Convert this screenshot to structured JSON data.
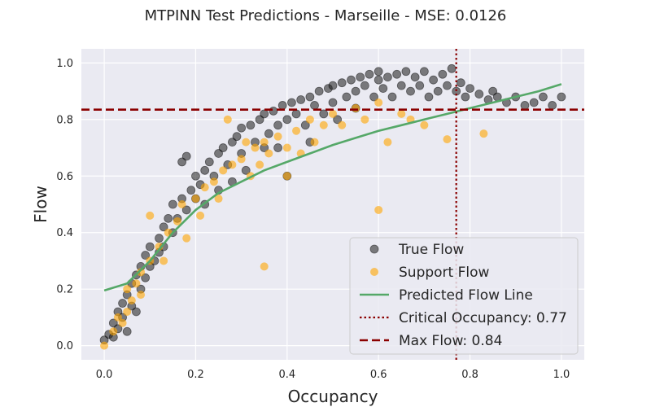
{
  "chart_data": {
    "type": "scatter",
    "title": "MTPINN Test Predictions - Marseille - MSE: 0.0126",
    "xlabel": "Occupancy",
    "ylabel": "Flow",
    "xlim": [
      -0.05,
      1.05
    ],
    "ylim": [
      -0.05,
      1.05
    ],
    "xticks": [
      "0.0",
      "0.2",
      "0.4",
      "0.6",
      "0.8",
      "1.0"
    ],
    "yticks": [
      "0.0",
      "0.2",
      "0.4",
      "0.6",
      "0.8",
      "1.0"
    ],
    "grid": true,
    "legend_position": "lower-right",
    "series": [
      {
        "name": "True Flow",
        "kind": "scatter",
        "color": "#1a1a1a",
        "note": "dense point cloud following a concave fundamental-diagram shape",
        "points": [
          [
            0.0,
            0.02
          ],
          [
            0.01,
            0.04
          ],
          [
            0.02,
            0.03
          ],
          [
            0.02,
            0.08
          ],
          [
            0.03,
            0.06
          ],
          [
            0.03,
            0.12
          ],
          [
            0.04,
            0.1
          ],
          [
            0.04,
            0.15
          ],
          [
            0.05,
            0.05
          ],
          [
            0.05,
            0.18
          ],
          [
            0.06,
            0.14
          ],
          [
            0.06,
            0.22
          ],
          [
            0.07,
            0.12
          ],
          [
            0.07,
            0.25
          ],
          [
            0.08,
            0.2
          ],
          [
            0.08,
            0.28
          ],
          [
            0.09,
            0.24
          ],
          [
            0.09,
            0.32
          ],
          [
            0.1,
            0.28
          ],
          [
            0.1,
            0.35
          ],
          [
            0.11,
            0.3
          ],
          [
            0.12,
            0.38
          ],
          [
            0.12,
            0.33
          ],
          [
            0.13,
            0.42
          ],
          [
            0.13,
            0.35
          ],
          [
            0.14,
            0.45
          ],
          [
            0.15,
            0.4
          ],
          [
            0.15,
            0.5
          ],
          [
            0.16,
            0.45
          ],
          [
            0.17,
            0.52
          ],
          [
            0.17,
            0.65
          ],
          [
            0.18,
            0.48
          ],
          [
            0.18,
            0.67
          ],
          [
            0.19,
            0.55
          ],
          [
            0.2,
            0.52
          ],
          [
            0.2,
            0.6
          ],
          [
            0.21,
            0.57
          ],
          [
            0.22,
            0.62
          ],
          [
            0.22,
            0.5
          ],
          [
            0.23,
            0.65
          ],
          [
            0.24,
            0.6
          ],
          [
            0.25,
            0.68
          ],
          [
            0.25,
            0.55
          ],
          [
            0.26,
            0.7
          ],
          [
            0.27,
            0.64
          ],
          [
            0.28,
            0.72
          ],
          [
            0.28,
            0.58
          ],
          [
            0.29,
            0.74
          ],
          [
            0.3,
            0.68
          ],
          [
            0.3,
            0.77
          ],
          [
            0.31,
            0.62
          ],
          [
            0.32,
            0.78
          ],
          [
            0.33,
            0.72
          ],
          [
            0.34,
            0.8
          ],
          [
            0.35,
            0.7
          ],
          [
            0.35,
            0.82
          ],
          [
            0.36,
            0.75
          ],
          [
            0.37,
            0.83
          ],
          [
            0.38,
            0.78
          ],
          [
            0.38,
            0.7
          ],
          [
            0.39,
            0.85
          ],
          [
            0.4,
            0.8
          ],
          [
            0.4,
            0.6
          ],
          [
            0.41,
            0.86
          ],
          [
            0.42,
            0.82
          ],
          [
            0.43,
            0.87
          ],
          [
            0.44,
            0.78
          ],
          [
            0.45,
            0.88
          ],
          [
            0.45,
            0.72
          ],
          [
            0.46,
            0.85
          ],
          [
            0.47,
            0.9
          ],
          [
            0.48,
            0.82
          ],
          [
            0.49,
            0.91
          ],
          [
            0.5,
            0.86
          ],
          [
            0.5,
            0.92
          ],
          [
            0.51,
            0.8
          ],
          [
            0.52,
            0.93
          ],
          [
            0.53,
            0.88
          ],
          [
            0.54,
            0.94
          ],
          [
            0.55,
            0.9
          ],
          [
            0.55,
            0.84
          ],
          [
            0.56,
            0.95
          ],
          [
            0.57,
            0.92
          ],
          [
            0.58,
            0.96
          ],
          [
            0.59,
            0.88
          ],
          [
            0.6,
            0.94
          ],
          [
            0.6,
            0.97
          ],
          [
            0.61,
            0.91
          ],
          [
            0.62,
            0.95
          ],
          [
            0.63,
            0.88
          ],
          [
            0.64,
            0.96
          ],
          [
            0.65,
            0.92
          ],
          [
            0.66,
            0.97
          ],
          [
            0.67,
            0.9
          ],
          [
            0.68,
            0.95
          ],
          [
            0.69,
            0.92
          ],
          [
            0.7,
            0.97
          ],
          [
            0.71,
            0.88
          ],
          [
            0.72,
            0.94
          ],
          [
            0.73,
            0.9
          ],
          [
            0.74,
            0.96
          ],
          [
            0.75,
            0.92
          ],
          [
            0.76,
            0.98
          ],
          [
            0.77,
            0.9
          ],
          [
            0.78,
            0.93
          ],
          [
            0.79,
            0.88
          ],
          [
            0.8,
            0.91
          ],
          [
            0.82,
            0.89
          ],
          [
            0.84,
            0.87
          ],
          [
            0.85,
            0.9
          ],
          [
            0.86,
            0.88
          ],
          [
            0.88,
            0.86
          ],
          [
            0.9,
            0.88
          ],
          [
            0.92,
            0.85
          ],
          [
            0.94,
            0.86
          ],
          [
            0.96,
            0.88
          ],
          [
            0.98,
            0.85
          ],
          [
            1.0,
            0.88
          ]
        ]
      },
      {
        "name": "Support Flow",
        "kind": "scatter",
        "color": "#ffa500",
        "points": [
          [
            0.0,
            0.0
          ],
          [
            0.02,
            0.05
          ],
          [
            0.03,
            0.1
          ],
          [
            0.04,
            0.08
          ],
          [
            0.05,
            0.12
          ],
          [
            0.05,
            0.2
          ],
          [
            0.06,
            0.16
          ],
          [
            0.07,
            0.22
          ],
          [
            0.08,
            0.26
          ],
          [
            0.08,
            0.18
          ],
          [
            0.1,
            0.3
          ],
          [
            0.1,
            0.46
          ],
          [
            0.12,
            0.35
          ],
          [
            0.13,
            0.3
          ],
          [
            0.14,
            0.4
          ],
          [
            0.16,
            0.44
          ],
          [
            0.17,
            0.5
          ],
          [
            0.18,
            0.38
          ],
          [
            0.2,
            0.52
          ],
          [
            0.21,
            0.46
          ],
          [
            0.22,
            0.56
          ],
          [
            0.24,
            0.58
          ],
          [
            0.25,
            0.52
          ],
          [
            0.26,
            0.62
          ],
          [
            0.27,
            0.8
          ],
          [
            0.28,
            0.64
          ],
          [
            0.3,
            0.66
          ],
          [
            0.31,
            0.72
          ],
          [
            0.32,
            0.6
          ],
          [
            0.33,
            0.7
          ],
          [
            0.34,
            0.64
          ],
          [
            0.35,
            0.72
          ],
          [
            0.35,
            0.28
          ],
          [
            0.36,
            0.68
          ],
          [
            0.38,
            0.74
          ],
          [
            0.4,
            0.7
          ],
          [
            0.4,
            0.6
          ],
          [
            0.42,
            0.76
          ],
          [
            0.43,
            0.68
          ],
          [
            0.45,
            0.8
          ],
          [
            0.46,
            0.72
          ],
          [
            0.48,
            0.78
          ],
          [
            0.5,
            0.82
          ],
          [
            0.52,
            0.78
          ],
          [
            0.55,
            0.84
          ],
          [
            0.57,
            0.8
          ],
          [
            0.6,
            0.86
          ],
          [
            0.6,
            0.48
          ],
          [
            0.62,
            0.72
          ],
          [
            0.65,
            0.82
          ],
          [
            0.67,
            0.8
          ],
          [
            0.7,
            0.78
          ],
          [
            0.75,
            0.73
          ],
          [
            0.83,
            0.75
          ]
        ]
      },
      {
        "name": "Predicted Flow Line",
        "kind": "line",
        "color": "#55a868",
        "x": [
          0.0,
          0.05,
          0.1,
          0.15,
          0.2,
          0.25,
          0.3,
          0.35,
          0.4,
          0.45,
          0.5,
          0.55,
          0.6,
          0.65,
          0.7,
          0.75,
          0.8,
          0.85,
          0.9,
          0.95,
          1.0
        ],
        "y": [
          0.195,
          0.22,
          0.3,
          0.4,
          0.48,
          0.54,
          0.58,
          0.62,
          0.65,
          0.68,
          0.71,
          0.735,
          0.76,
          0.78,
          0.8,
          0.82,
          0.84,
          0.86,
          0.88,
          0.9,
          0.925
        ]
      },
      {
        "name": "Critical Occupancy: 0.77",
        "kind": "vline",
        "color": "#8b0000",
        "value": 0.77
      },
      {
        "name": "Max Flow: 0.84",
        "kind": "hline",
        "color": "#8b0000",
        "value": 0.835
      }
    ]
  }
}
